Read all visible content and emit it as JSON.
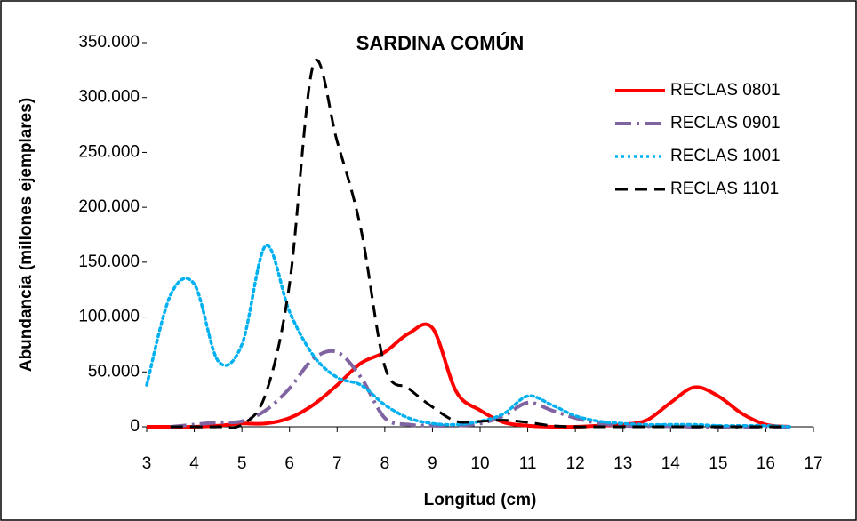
{
  "chart_data": {
    "type": "line",
    "title": "SARDINA COMÚN",
    "x_label": "Longitud (cm)",
    "y_label": "Abundancia (millones ejemplares)",
    "x": [
      3,
      3.5,
      4,
      4.5,
      5,
      5.5,
      6,
      6.5,
      7,
      7.5,
      8,
      8.5,
      9,
      9.5,
      10,
      10.5,
      11,
      11.5,
      12,
      12.5,
      13,
      13.5,
      14,
      14.5,
      15,
      15.5,
      16,
      16.5
    ],
    "series": [
      {
        "name": "RECLAS 0801",
        "color": "#ff0000",
        "dash": "solid",
        "width": 4,
        "values": [
          0,
          0,
          0,
          1000,
          3000,
          3000,
          8000,
          20000,
          38000,
          58000,
          68000,
          85000,
          90000,
          32000,
          15000,
          4000,
          1000,
          0,
          0,
          1000,
          2000,
          6000,
          22000,
          36000,
          28000,
          12000,
          2000,
          0
        ]
      },
      {
        "name": "RECLAS 0901",
        "color": "#8064a2",
        "dash": "dashdot",
        "width": 4,
        "values": [
          null,
          0,
          2000,
          4000,
          5000,
          15000,
          35000,
          62000,
          68000,
          45000,
          8000,
          2000,
          1000,
          1000,
          3000,
          10000,
          22000,
          15000,
          8000,
          3000,
          1000,
          500,
          500,
          0,
          0,
          0,
          0,
          0
        ]
      },
      {
        "name": "RECLAS 1001",
        "color": "#00b0f0",
        "dash": "dotted",
        "width": 3.5,
        "values": [
          38000,
          120000,
          130000,
          60000,
          75000,
          165000,
          105000,
          65000,
          45000,
          38000,
          20000,
          8000,
          3000,
          2000,
          5000,
          12000,
          28000,
          20000,
          10000,
          5000,
          3000,
          2000,
          2000,
          2000,
          1000,
          1000,
          1000,
          0
        ]
      },
      {
        "name": "RECLAS 1101",
        "color": "#000000",
        "dash": "dashed",
        "width": 3,
        "values": [
          null,
          0,
          0,
          0,
          2000,
          30000,
          130000,
          330000,
          260000,
          180000,
          55000,
          35000,
          18000,
          5000,
          5000,
          6000,
          4000,
          1000,
          0,
          0,
          0,
          0,
          0,
          0,
          0,
          0,
          0,
          0
        ]
      }
    ],
    "xlim": [
      3,
      17
    ],
    "xticks": [
      3,
      4,
      5,
      6,
      7,
      8,
      9,
      10,
      11,
      12,
      13,
      14,
      15,
      16,
      17
    ],
    "ylim": [
      0,
      350000
    ],
    "yticks": [
      0,
      {
        "value": 50000,
        "label": "50.000"
      },
      {
        "value": 100000,
        "label": "100.000"
      },
      {
        "value": 150000,
        "label": "150.000"
      },
      {
        "value": 200000,
        "label": "200.000"
      },
      {
        "value": 250000,
        "label": "250.000"
      },
      {
        "value": 300000,
        "label": "300.000"
      },
      {
        "value": 350000,
        "label": "350.000"
      }
    ],
    "legend": "upper right"
  }
}
